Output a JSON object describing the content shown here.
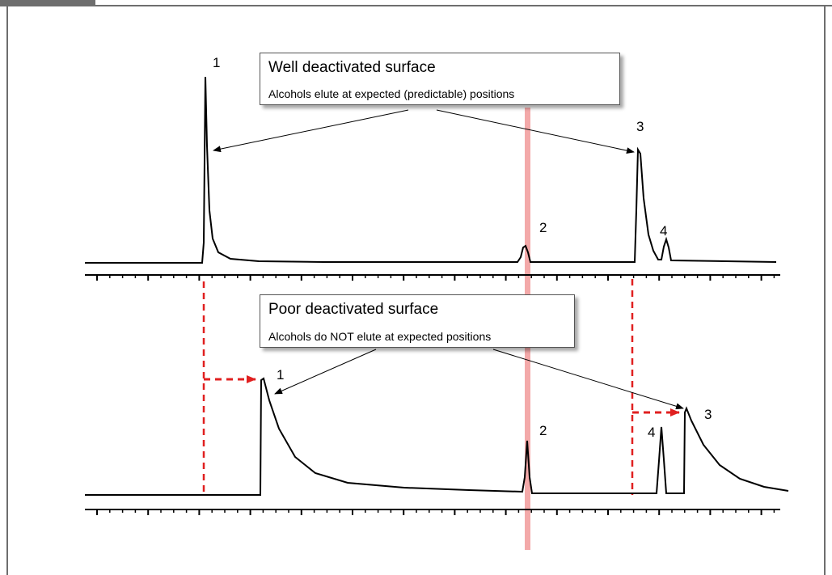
{
  "top_panel": {
    "title": "Well deactivated surface",
    "subtitle": "Alcohols elute at expected (predictable) positions",
    "peaks": [
      "1",
      "2",
      "3",
      "4"
    ]
  },
  "bottom_panel": {
    "title": "Poor deactivated surface",
    "subtitle": "Alcohols do NOT elute at expected positions",
    "peaks": [
      "1",
      "2",
      "4",
      "3"
    ]
  },
  "colors": {
    "trace": "#000000",
    "reference_band": "#f2a0a0",
    "shift_arrow": "#e02020",
    "frame": "#6e6e6e"
  }
}
